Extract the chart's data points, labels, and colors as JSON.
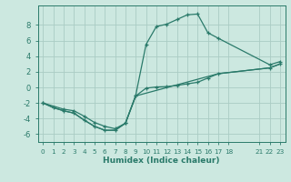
{
  "xlabel": "Humidex (Indice chaleur)",
  "bg_color": "#cce8e0",
  "grid_color": "#aaccC4",
  "line_color": "#2a7a6a",
  "xlim": [
    -0.5,
    23.5
  ],
  "ylim": [
    -7,
    10.5
  ],
  "xticks": [
    0,
    1,
    2,
    3,
    4,
    5,
    6,
    7,
    8,
    9,
    10,
    11,
    12,
    13,
    14,
    15,
    16,
    17,
    18,
    21,
    22,
    23
  ],
  "yticks": [
    -6,
    -4,
    -2,
    0,
    2,
    4,
    6,
    8
  ],
  "line1_x": [
    0,
    1,
    2,
    3,
    4,
    5,
    6,
    7,
    8,
    9,
    10,
    11,
    12,
    13,
    14,
    15,
    16,
    17,
    22,
    23
  ],
  "line1_y": [
    -2.0,
    -2.6,
    -3.0,
    -3.3,
    -4.2,
    -5.0,
    -5.5,
    -5.5,
    -4.6,
    -1.0,
    5.5,
    7.8,
    8.1,
    8.7,
    9.3,
    9.4,
    7.0,
    6.3,
    2.9,
    3.3
  ],
  "line2_x": [
    0,
    2,
    3,
    4,
    5,
    6,
    7,
    8,
    9,
    10,
    11,
    12,
    13,
    14,
    15,
    16,
    17,
    22,
    23
  ],
  "line2_y": [
    -2.0,
    -2.8,
    -3.0,
    -3.7,
    -4.5,
    -5.0,
    -5.3,
    -4.6,
    -1.1,
    -0.1,
    0.05,
    0.1,
    0.25,
    0.45,
    0.65,
    1.2,
    1.75,
    2.5,
    3.0
  ],
  "line3_x": [
    0,
    1,
    2,
    3,
    4,
    5,
    6,
    7,
    8,
    9,
    17,
    22,
    23
  ],
  "line3_y": [
    -2.0,
    -2.6,
    -3.0,
    -3.3,
    -4.2,
    -5.0,
    -5.5,
    -5.5,
    -4.6,
    -1.1,
    1.75,
    2.5,
    3.0
  ]
}
